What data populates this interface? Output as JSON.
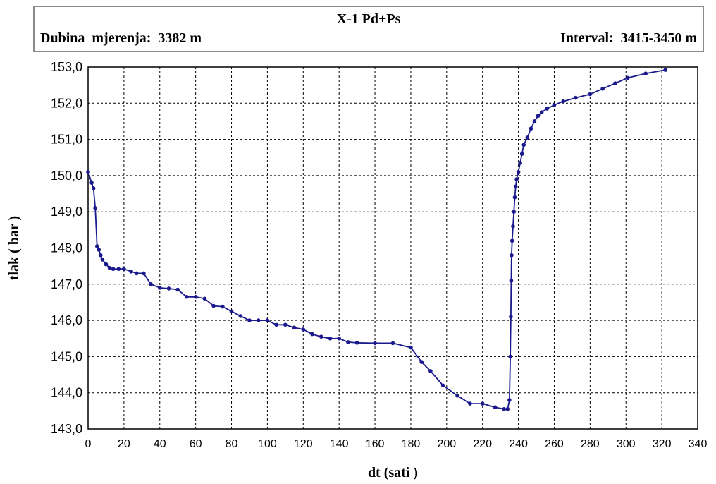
{
  "header": {
    "title": "X-1  Pd+Ps",
    "left_label": "Dubina  mjerenja:  3382 m",
    "right_label": "Interval:  3415-3450 m"
  },
  "chart_data": {
    "type": "line",
    "title": "X-1  Pd+Ps",
    "xlabel": "dt (sati )",
    "ylabel": "tlak ( bar )",
    "xlim": [
      0,
      340
    ],
    "ylim": [
      143,
      153
    ],
    "xticks": [
      0,
      20,
      40,
      60,
      80,
      100,
      120,
      140,
      160,
      180,
      200,
      220,
      240,
      260,
      280,
      300,
      320,
      340
    ],
    "yticks": [
      "143,0",
      "144,0",
      "145,0",
      "146,0",
      "147,0",
      "148,0",
      "149,0",
      "150,0",
      "151,0",
      "152,0",
      "153,0"
    ],
    "grid": true,
    "line_color": "#1a1a8c",
    "series": [
      {
        "x": [
          0,
          2,
          3,
          4,
          5,
          6,
          7,
          8,
          10,
          12,
          14,
          17,
          20,
          24,
          27,
          31,
          35,
          40,
          45,
          50,
          55,
          60,
          65,
          70,
          75,
          80,
          85,
          90,
          95,
          100,
          105,
          110,
          115,
          120,
          125,
          130,
          135,
          140,
          145,
          150,
          160,
          170,
          180,
          186,
          191,
          198,
          206,
          213,
          220,
          227,
          232,
          234,
          235,
          235.5,
          235.8,
          236,
          236.2,
          236.5,
          237,
          237.5,
          238,
          238.5,
          239,
          240,
          241,
          242,
          243,
          245,
          247,
          249,
          251,
          253,
          256,
          260,
          265,
          272,
          280,
          287,
          294,
          301,
          311,
          322
        ],
        "y": [
          150.1,
          149.8,
          149.65,
          149.1,
          148.05,
          147.95,
          147.8,
          147.68,
          147.55,
          147.45,
          147.42,
          147.42,
          147.42,
          147.35,
          147.3,
          147.3,
          147.0,
          146.9,
          146.88,
          146.85,
          146.65,
          146.65,
          146.6,
          146.4,
          146.38,
          146.25,
          146.12,
          146.0,
          146.0,
          146.0,
          145.88,
          145.88,
          145.8,
          145.75,
          145.62,
          145.55,
          145.5,
          145.5,
          145.4,
          145.38,
          145.37,
          145.37,
          145.25,
          144.85,
          144.6,
          144.2,
          143.92,
          143.7,
          143.7,
          143.6,
          143.55,
          143.55,
          143.8,
          145.0,
          146.1,
          147.1,
          147.8,
          148.2,
          148.6,
          149.0,
          149.4,
          149.7,
          149.9,
          150.1,
          150.35,
          150.6,
          150.85,
          151.05,
          151.3,
          151.5,
          151.65,
          151.75,
          151.85,
          151.95,
          152.05,
          152.15,
          152.25,
          152.4,
          152.55,
          152.7,
          152.82,
          152.92
        ]
      }
    ]
  }
}
